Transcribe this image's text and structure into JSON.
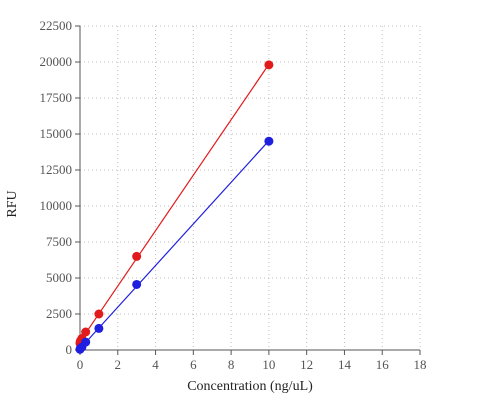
{
  "chart_data": {
    "type": "scatter",
    "xlabel": "Concentration (ng/uL)",
    "ylabel": "RFU",
    "xlim": [
      0,
      18
    ],
    "ylim": [
      0,
      22500
    ],
    "xticks": [
      0,
      2,
      4,
      6,
      8,
      10,
      12,
      14,
      16,
      18
    ],
    "yticks": [
      0,
      2500,
      5000,
      7500,
      10000,
      12500,
      15000,
      17500,
      20000,
      22500
    ],
    "grid": true,
    "legend": "none",
    "series": [
      {
        "color": "#e31a1c",
        "x": [
          0,
          0.01,
          0.03,
          0.1,
          0.3,
          1,
          3,
          10
        ],
        "y": [
          450,
          550,
          650,
          800,
          1250,
          2500,
          6500,
          19800
        ],
        "fit_line": true
      },
      {
        "color": "#1f1fe0",
        "x": [
          0,
          0.01,
          0.03,
          0.1,
          0.3,
          1,
          3,
          10
        ],
        "y": [
          50,
          80,
          120,
          200,
          550,
          1500,
          4550,
          14500
        ],
        "fit_line": true
      }
    ]
  }
}
